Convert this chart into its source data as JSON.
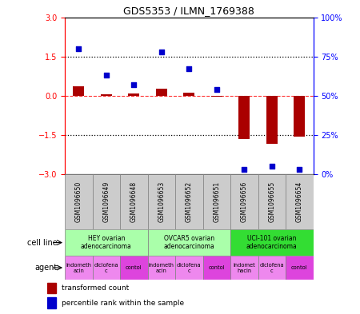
{
  "title": "GDS5353 / ILMN_1769388",
  "samples": [
    "GSM1096650",
    "GSM1096649",
    "GSM1096648",
    "GSM1096653",
    "GSM1096652",
    "GSM1096651",
    "GSM1096656",
    "GSM1096655",
    "GSM1096654"
  ],
  "red_values": [
    0.35,
    0.07,
    0.08,
    0.28,
    0.13,
    -0.04,
    -1.65,
    -1.85,
    -1.55
  ],
  "blue_values": [
    80,
    63,
    57,
    78,
    67,
    54,
    3,
    5,
    3
  ],
  "ylim_left": [
    -3,
    3
  ],
  "ylim_right": [
    0,
    100
  ],
  "yticks_left": [
    -3,
    -1.5,
    0,
    1.5,
    3
  ],
  "yticks_right": [
    0,
    25,
    50,
    75,
    100
  ],
  "ytick_labels_right": [
    "0%",
    "25%",
    "50%",
    "75%",
    "100%"
  ],
  "cell_line_groups": [
    {
      "label": "HEY ovarian\nadenocarcinoma",
      "start": 0,
      "end": 3,
      "color": "#aaffaa"
    },
    {
      "label": "OVCAR5 ovarian\nadenocarcinoma",
      "start": 3,
      "end": 6,
      "color": "#aaffaa"
    },
    {
      "label": "UCI-101 ovarian\nadenocarcinoma",
      "start": 6,
      "end": 9,
      "color": "#33dd33"
    }
  ],
  "agent_groups": [
    {
      "label": "indometh\nacin",
      "start": 0,
      "end": 1,
      "color": "#ee88ee"
    },
    {
      "label": "diclofena\nc",
      "start": 1,
      "end": 2,
      "color": "#ee88ee"
    },
    {
      "label": "contol",
      "start": 2,
      "end": 3,
      "color": "#dd44dd"
    },
    {
      "label": "indometh\nacin",
      "start": 3,
      "end": 4,
      "color": "#ee88ee"
    },
    {
      "label": "diclofena\nc",
      "start": 4,
      "end": 5,
      "color": "#ee88ee"
    },
    {
      "label": "contol",
      "start": 5,
      "end": 6,
      "color": "#dd44dd"
    },
    {
      "label": "indomet\nhacin",
      "start": 6,
      "end": 7,
      "color": "#ee88ee"
    },
    {
      "label": "diclofena\nc",
      "start": 7,
      "end": 8,
      "color": "#ee88ee"
    },
    {
      "label": "contol",
      "start": 8,
      "end": 9,
      "color": "#dd44dd"
    }
  ],
  "bar_color": "#AA0000",
  "dot_color": "#0000CC",
  "bg_color": "#FFFFFF",
  "sample_box_color": "#CCCCCC",
  "cell_line_row_label": "cell line",
  "agent_row_label": "agent",
  "legend_red": "transformed count",
  "legend_blue": "percentile rank within the sample"
}
